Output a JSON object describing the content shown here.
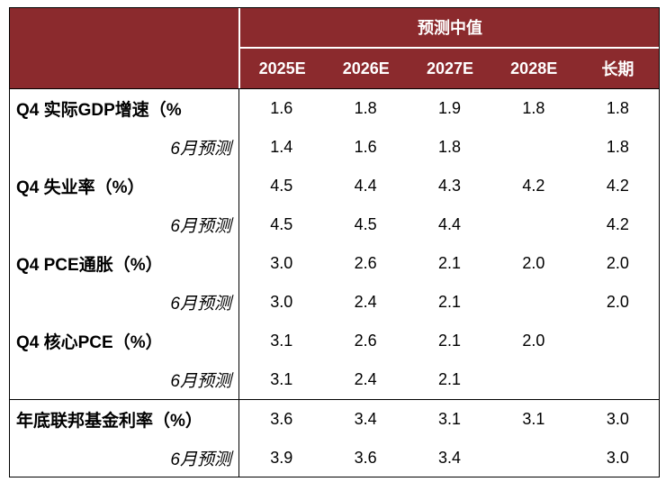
{
  "chart_data": {
    "type": "table",
    "header_group": "预测中值",
    "columns": [
      "2025E",
      "2026E",
      "2027E",
      "2028E",
      "长期"
    ],
    "rows": [
      {
        "label": "Q4 实际GDP增速（%",
        "values": [
          "1.6",
          "1.8",
          "1.9",
          "1.8",
          "1.8"
        ]
      },
      {
        "label": "6月预测",
        "values": [
          "1.4",
          "1.6",
          "1.8",
          "",
          "1.8"
        ]
      },
      {
        "label": "Q4 失业率（%）",
        "values": [
          "4.5",
          "4.4",
          "4.3",
          "4.2",
          "4.2"
        ]
      },
      {
        "label": "6月预测",
        "values": [
          "4.5",
          "4.5",
          "4.4",
          "",
          "4.2"
        ]
      },
      {
        "label": "Q4 PCE通胀（%）",
        "values": [
          "3.0",
          "2.6",
          "2.1",
          "2.0",
          "2.0"
        ]
      },
      {
        "label": "6月预测",
        "values": [
          "3.0",
          "2.4",
          "2.1",
          "",
          "2.0"
        ]
      },
      {
        "label": "Q4 核心PCE（%）",
        "values": [
          "3.1",
          "2.6",
          "2.1",
          "2.0",
          ""
        ]
      },
      {
        "label": "6月预测",
        "values": [
          "3.1",
          "2.4",
          "2.1",
          "",
          ""
        ]
      },
      {
        "label": "年底联邦基金利率（%）",
        "values": [
          "3.6",
          "3.4",
          "3.1",
          "3.1",
          "3.0"
        ]
      },
      {
        "label": "6月预测",
        "values": [
          "3.9",
          "3.6",
          "3.4",
          "",
          "3.0"
        ]
      }
    ]
  },
  "colors": {
    "header_background": "#8B2A2D",
    "header_text": "#FFFFFF",
    "rule": "#000000"
  }
}
